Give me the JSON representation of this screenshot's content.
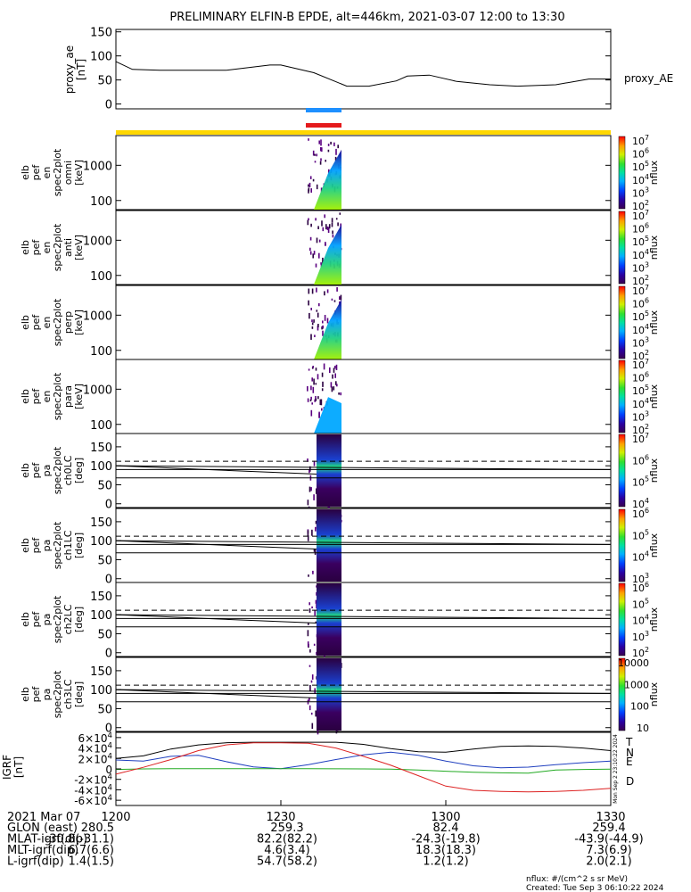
{
  "title": "PRELIMINARY ELFIN-B EPDE, alt=446km, 2021-03-07 12:00 to 13:30",
  "colors": {
    "proxy_line": "#000000",
    "bar_blue": "#1e90ff",
    "bar_red": "#e41a1c",
    "bar_yellow": "#ffd700",
    "grf_T": "#000000",
    "grf_N": "#1f3fbf",
    "grf_E": "#22aa22",
    "grf_D": "#dd2222"
  },
  "chart_data": [
    {
      "type": "line",
      "name": "proxy_ae",
      "ylabel": [
        "proxy_ae",
        "[nT]"
      ],
      "legend": "proxy_AE",
      "ylim": [
        -10,
        155
      ],
      "yticks": [
        0,
        50,
        100,
        150
      ],
      "x_minutes": [
        0,
        3,
        8,
        20,
        28,
        30,
        36,
        42,
        46,
        51,
        53,
        57,
        62,
        68,
        73,
        80,
        86,
        90
      ],
      "values": [
        88,
        72,
        70,
        70,
        81,
        81,
        65,
        37,
        37,
        48,
        58,
        60,
        47,
        40,
        37,
        40,
        52,
        52
      ]
    },
    {
      "type": "heatmap",
      "name": "elb_pef_en_spec2plot_omni",
      "ylabel": [
        "elb",
        "pef",
        "en",
        "spec2plot",
        "omni",
        "[keV]"
      ],
      "yscale": "log",
      "ylim": [
        55,
        7000
      ],
      "yticks": [
        100,
        1000
      ],
      "colorbar": {
        "label": "nflux",
        "ticks": [
          "10^2",
          "10^3",
          "10^4",
          "10^5",
          "10^6",
          "10^7"
        ]
      }
    },
    {
      "type": "heatmap",
      "name": "elb_pef_en_spec2plot_anti",
      "ylabel": [
        "elb",
        "pef",
        "en",
        "spec2plot",
        "anti",
        "[keV]"
      ],
      "yscale": "log",
      "ylim": [
        55,
        7000
      ],
      "yticks": [
        100,
        1000
      ],
      "colorbar": {
        "label": "nflux",
        "ticks": [
          "10^2",
          "10^3",
          "10^4",
          "10^5",
          "10^6",
          "10^7"
        ]
      }
    },
    {
      "type": "heatmap",
      "name": "elb_pef_en_spec2plot_perp",
      "ylabel": [
        "elb",
        "pef",
        "en",
        "spec2plot",
        "perp",
        "[keV]"
      ],
      "yscale": "log",
      "ylim": [
        55,
        7000
      ],
      "yticks": [
        100,
        1000
      ],
      "colorbar": {
        "label": "nflux",
        "ticks": [
          "10^2",
          "10^3",
          "10^4",
          "10^5",
          "10^6",
          "10^7"
        ]
      }
    },
    {
      "type": "heatmap",
      "name": "elb_pef_en_spec2plot_para",
      "ylabel": [
        "elb",
        "pef",
        "en",
        "spec2plot",
        "para",
        "[keV]"
      ],
      "yscale": "log",
      "ylim": [
        55,
        7000
      ],
      "yticks": [
        100,
        1000
      ],
      "colorbar": {
        "label": "nflux",
        "ticks": [
          "10^2",
          "10^3",
          "10^4",
          "10^5",
          "10^6",
          "10^7"
        ]
      }
    },
    {
      "type": "heatmap",
      "name": "elb_pef_pa_spec2plot_ch0LC",
      "ylabel": [
        "elb",
        "pef",
        "pa",
        "spec2plot",
        "ch0LC",
        "[deg]"
      ],
      "ylim": [
        -10,
        185
      ],
      "yticks": [
        0,
        50,
        100,
        150
      ],
      "colorbar": {
        "label": "nflux",
        "ticks": [
          "10^4",
          "10^5",
          "10^6",
          "10^7"
        ]
      }
    },
    {
      "type": "heatmap",
      "name": "elb_pef_pa_spec2plot_ch1LC",
      "ylabel": [
        "elb",
        "pef",
        "pa",
        "spec2plot",
        "ch1LC",
        "[deg]"
      ],
      "ylim": [
        -10,
        185
      ],
      "yticks": [
        0,
        50,
        100,
        150
      ],
      "colorbar": {
        "label": "nflux",
        "ticks": [
          "10^3",
          "10^4",
          "10^5",
          "10^6"
        ]
      }
    },
    {
      "type": "heatmap",
      "name": "elb_pef_pa_spec2plot_ch2LC",
      "ylabel": [
        "elb",
        "pef",
        "pa",
        "spec2plot",
        "ch2LC",
        "[deg]"
      ],
      "ylim": [
        -10,
        185
      ],
      "yticks": [
        0,
        50,
        100,
        150
      ],
      "colorbar": {
        "label": "nflux",
        "ticks": [
          "10^2",
          "10^3",
          "10^4",
          "10^5",
          "10^6"
        ]
      }
    },
    {
      "type": "heatmap",
      "name": "elb_pef_pa_spec2plot_ch3LC",
      "ylabel": [
        "elb",
        "pef",
        "pa",
        "spec2plot",
        "ch3LC",
        "[deg]"
      ],
      "ylim": [
        -10,
        185
      ],
      "yticks": [
        0,
        50,
        100,
        150
      ],
      "colorbar": {
        "label": "nflux",
        "ticks": [
          "10",
          "100",
          "1000",
          "10000"
        ]
      }
    },
    {
      "type": "line",
      "name": "IGRF",
      "ylabel": [
        "IGRF",
        "[nT]"
      ],
      "ylim": [
        -70000,
        70000
      ],
      "yticks": [
        -60000,
        -40000,
        -20000,
        0,
        20000,
        40000,
        60000
      ],
      "ytick_labels": [
        "-6×10^4",
        "-4×10^4",
        "-2×10^4",
        "0",
        "2×10^4",
        "4×10^4",
        "6×10^4"
      ],
      "x_minutes": [
        0,
        5,
        10,
        15,
        20,
        25,
        30,
        35,
        40,
        45,
        50,
        55,
        60,
        65,
        70,
        75,
        80,
        85,
        90
      ],
      "series": [
        {
          "name": "T",
          "values": [
            20000,
            25000,
            38000,
            46000,
            50000,
            51000,
            51000,
            51000,
            51000,
            47000,
            39000,
            33000,
            32000,
            38000,
            43000,
            44000,
            43000,
            40000,
            35000
          ]
        },
        {
          "name": "N",
          "values": [
            17000,
            15000,
            24000,
            26000,
            14000,
            4000,
            500,
            8000,
            18000,
            27000,
            32000,
            26000,
            15000,
            6000,
            2000,
            3500,
            8000,
            12000,
            15000
          ]
        },
        {
          "name": "E",
          "values": [
            -1000,
            0,
            300,
            500,
            500,
            500,
            400,
            300,
            200,
            0,
            -500,
            -2000,
            -4500,
            -6500,
            -7500,
            -8000,
            -2000,
            -1000,
            -500
          ]
        },
        {
          "name": "D",
          "values": [
            -10000,
            3000,
            18000,
            35000,
            46000,
            50000,
            50000,
            49000,
            40000,
            24000,
            7000,
            -13000,
            -33000,
            -41000,
            -43000,
            -44000,
            -43000,
            -41000,
            -37000
          ]
        }
      ]
    }
  ],
  "x_axis": {
    "ticks": [
      "1200",
      "1230",
      "1300",
      "1330"
    ],
    "tick_minutes": [
      0,
      30,
      60,
      90
    ],
    "date": "2021 Mar 07"
  },
  "footer_rows": [
    {
      "label": "GLON (east)",
      "values": [
        "280.5",
        "259.3",
        "82.4",
        "259.4"
      ]
    },
    {
      "label": "MLAT-igrf(dip)",
      "values": [
        "-30.8(-31.1)",
        "82.2(82.2)",
        "-24.3(-19.8)",
        "-43.9(-44.9)"
      ]
    },
    {
      "label": "MLT-igrf(dip)",
      "values": [
        "6.7(6.6)",
        "4.6(3.4)",
        "18.3(18.3)",
        "7.3(6.9)"
      ]
    },
    {
      "label": "L-igrf(dip)",
      "values": [
        "1.4(1.5)",
        "54.7(58.2)",
        "1.2(1.2)",
        "2.0(2.1)"
      ]
    }
  ],
  "units_note": "nflux: #/(cm^2 s sr MeV)",
  "created_note": "Created: Tue Sep  3 06:10:22 2024",
  "side_stamp": "Mon Sep  2 23:10:22 2024"
}
